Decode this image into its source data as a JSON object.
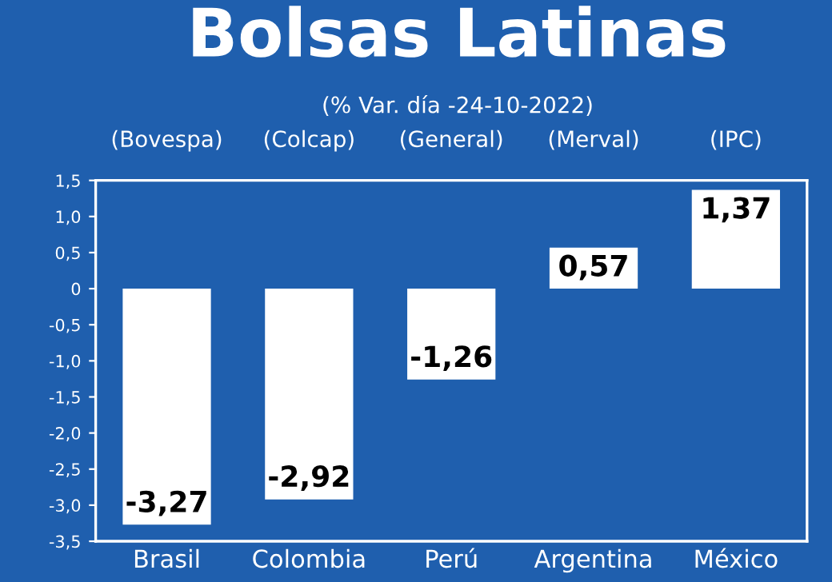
{
  "chart_data": {
    "type": "bar",
    "title": "Bolsas Latinas",
    "subtitle": "(% Var. día -24-10-2022)",
    "categories": [
      "Brasil",
      "Colombia",
      "Perú",
      "Argentina",
      "México"
    ],
    "values": [
      -3.27,
      -2.92,
      -1.26,
      0.57,
      1.37
    ],
    "value_labels": [
      "-3,27",
      "-2,92",
      "-1,26",
      "0,57",
      "1,37"
    ],
    "color": "#ffffff",
    "annotations": [
      "(Bovespa)",
      "(Colcap)",
      "(General)",
      "(Merval)",
      "(IPC)"
    ],
    "ylim": [
      -3.5,
      1.5
    ],
    "yticks": [
      {
        "value": 1.5,
        "label": "1,5"
      },
      {
        "value": 1.0,
        "label": "1,0"
      },
      {
        "value": 0.5,
        "label": "0,5"
      },
      0,
      {
        "value": -0.5,
        "label": "-0,5"
      },
      {
        "value": -1.0,
        "label": "-1,0"
      },
      {
        "value": -1.5,
        "label": "-1,5"
      },
      {
        "value": -2.0,
        "label": "-2,0"
      },
      {
        "value": -2.5,
        "label": "-2,5"
      },
      {
        "value": -3.0,
        "label": "-3,0"
      },
      {
        "value": -3.5,
        "label": "-3,5"
      }
    ],
    "grid": false,
    "legend": false
  }
}
